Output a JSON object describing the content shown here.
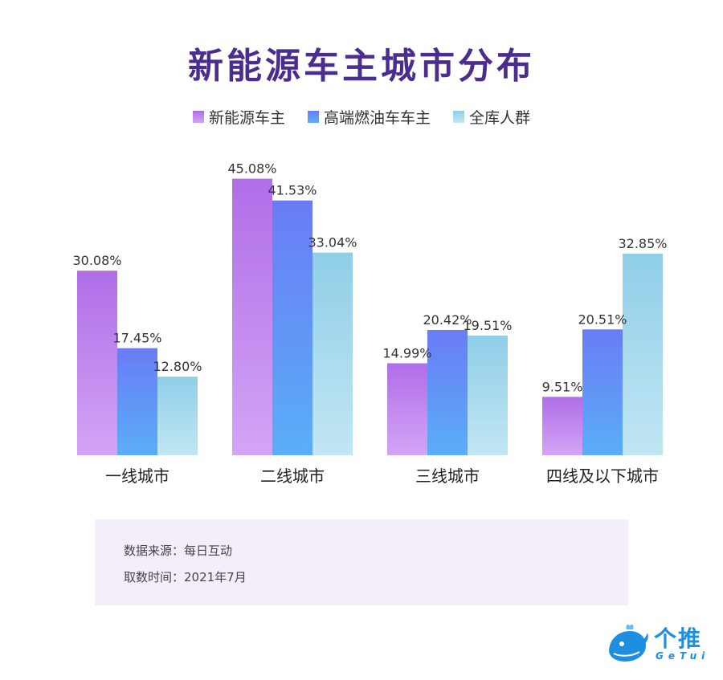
{
  "chart_data": {
    "type": "bar",
    "title": "新能源车主城市分布",
    "categories": [
      "一线城市",
      "二线城市",
      "三线城市",
      "四线及以下城市"
    ],
    "series": [
      {
        "name": "新能源车主",
        "values": [
          30.08,
          45.08,
          14.99,
          9.51
        ],
        "labels": [
          "30.08%",
          "45.08%",
          "14.99%",
          "9.51%"
        ]
      },
      {
        "name": "高端燃油车车主",
        "values": [
          17.45,
          41.53,
          20.42,
          20.51
        ],
        "labels": [
          "17.45%",
          "41.53%",
          "20.42%",
          "20.51%"
        ]
      },
      {
        "name": "全库人群",
        "values": [
          12.8,
          33.04,
          19.51,
          32.85
        ],
        "labels": [
          "12.80%",
          "33.04%",
          "19.51%",
          "32.85%"
        ]
      }
    ],
    "unit": "%",
    "ylim": [
      0,
      50
    ],
    "grid": false,
    "legend_position": "top-center",
    "colors": {
      "新能源车主": [
        "#b06ee8",
        "#d4a4f5"
      ],
      "高端燃油车车主": [
        "#6a7cf5",
        "#5aaef8"
      ],
      "全库人群": [
        "#8fcfe8",
        "#c2e6f3"
      ]
    }
  },
  "source": {
    "line1": "数据来源：每日互动",
    "line2": "取数时间：2021年7月"
  },
  "logo": {
    "text": "个推",
    "sub": "GeTui",
    "icon": "whale-logo-icon"
  }
}
